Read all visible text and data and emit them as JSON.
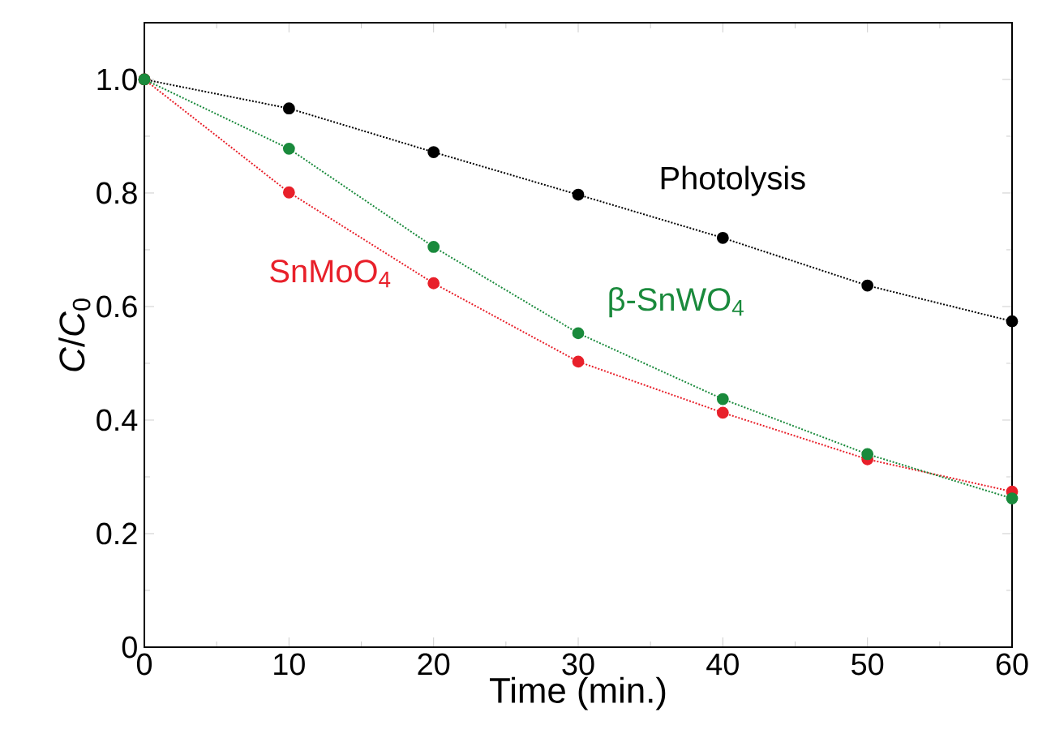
{
  "chart_data": {
    "type": "line",
    "xlabel": "Time (min.)",
    "ylabel": "*C*/*C*$_{0}$",
    "x": [
      0,
      10,
      20,
      30,
      40,
      50,
      60
    ],
    "series": [
      {
        "name": "Photolysis",
        "color": "#000000",
        "values": [
          1.0,
          0.949,
          0.872,
          0.797,
          0.721,
          0.637,
          0.574
        ]
      },
      {
        "name": "SnMoO$_{4}$",
        "color": "#e8202a",
        "values": [
          1.0,
          0.801,
          0.641,
          0.503,
          0.413,
          0.331,
          0.274
        ]
      },
      {
        "name": "β-SnWO$_{4}$",
        "color": "#1a8a3c",
        "values": [
          1.0,
          0.878,
          0.705,
          0.553,
          0.437,
          0.34,
          0.262
        ]
      }
    ],
    "xlim": [
      0,
      60
    ],
    "ylim": [
      0,
      1.1
    ],
    "xticks": [
      0,
      10,
      20,
      30,
      40,
      50,
      60
    ],
    "yticks": [
      {
        "value": 0,
        "label": "0"
      },
      {
        "value": 0.2,
        "label": "0.2"
      },
      {
        "value": 0.4,
        "label": "0.4"
      },
      {
        "value": 0.6,
        "label": "0.6"
      },
      {
        "value": 0.8,
        "label": "0.8"
      },
      {
        "value": 1.0,
        "label": "1.0"
      }
    ],
    "grid": false,
    "marker": "circle",
    "line_style": "dotted"
  }
}
